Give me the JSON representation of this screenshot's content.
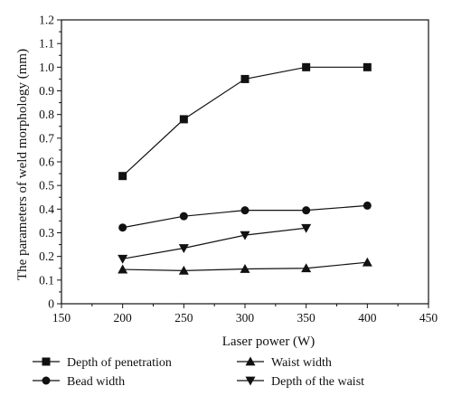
{
  "chart_data": {
    "type": "line",
    "xlabel": "Laser power (W)",
    "ylabel": "The parameters of weld morphology (mm)",
    "xlim": [
      150,
      450
    ],
    "ylim": [
      0,
      1.2
    ],
    "x_ticks": [
      "150",
      "200",
      "250",
      "300",
      "350",
      "400",
      "450"
    ],
    "y_ticks": [
      "0",
      "0.1",
      "0.2",
      "0.3",
      "0.4",
      "0.5",
      "0.6",
      "0.7",
      "0.8",
      "0.9",
      "1.0",
      "1.1",
      "1.2"
    ],
    "grid": false,
    "legend_position": "bottom",
    "series": [
      {
        "name": "Depth of penetration",
        "marker": "square",
        "x": [
          200,
          250,
          300,
          350,
          400
        ],
        "values": [
          0.54,
          0.78,
          0.95,
          1.0,
          1.0
        ]
      },
      {
        "name": "Waist width",
        "marker": "triangle-up",
        "x": [
          200,
          250,
          300,
          350,
          400
        ],
        "values": [
          0.145,
          0.14,
          0.147,
          0.15,
          0.175
        ]
      },
      {
        "name": "Bead width",
        "marker": "circle",
        "x": [
          200,
          250,
          300,
          350,
          400
        ],
        "values": [
          0.322,
          0.37,
          0.395,
          0.395,
          0.415
        ]
      },
      {
        "name": "Depth of the waist",
        "marker": "triangle-down",
        "x": [
          200,
          250,
          300,
          350
        ],
        "values": [
          0.19,
          0.235,
          0.29,
          0.32
        ]
      }
    ]
  }
}
